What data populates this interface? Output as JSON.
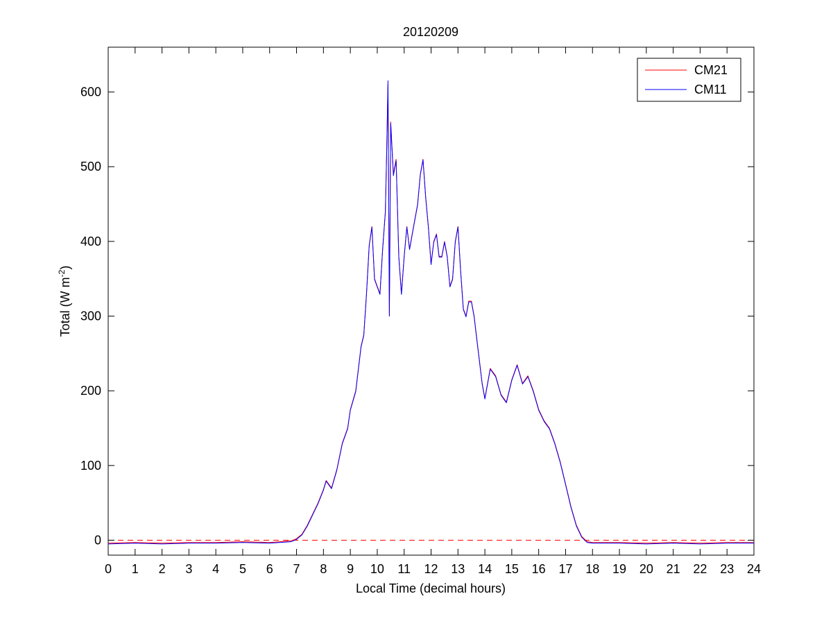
{
  "chart_data": {
    "type": "line",
    "title": "20120209",
    "xlabel": "Local Time (decimal hours)",
    "ylabel_main": "Total (W m",
    "ylabel_sup": "-2",
    "ylabel_end": ")",
    "xlim": [
      0,
      24
    ],
    "ylim": [
      -20,
      660
    ],
    "xticks": [
      0,
      1,
      2,
      3,
      4,
      5,
      6,
      7,
      8,
      9,
      10,
      11,
      12,
      13,
      14,
      15,
      16,
      17,
      18,
      19,
      20,
      21,
      22,
      23,
      24
    ],
    "yticks": [
      0,
      100,
      200,
      300,
      400,
      500,
      600
    ],
    "grid": false,
    "legend_position": "top-right",
    "reference_line": {
      "y": 0,
      "color": "#ff0000",
      "style": "dashed"
    },
    "series": [
      {
        "name": "CM21",
        "color": "#ff0000",
        "x": [
          0,
          1,
          2,
          3,
          4,
          5,
          6,
          6.8,
          7.0,
          7.2,
          7.4,
          7.6,
          7.8,
          8.0,
          8.1,
          8.3,
          8.5,
          8.7,
          8.9,
          9.0,
          9.2,
          9.4,
          9.5,
          9.6,
          9.7,
          9.8,
          9.9,
          10.0,
          10.1,
          10.2,
          10.3,
          10.35,
          10.4,
          10.45,
          10.5,
          10.6,
          10.7,
          10.8,
          10.9,
          11.0,
          11.1,
          11.2,
          11.3,
          11.5,
          11.6,
          11.7,
          11.8,
          11.9,
          12.0,
          12.1,
          12.2,
          12.3,
          12.4,
          12.5,
          12.6,
          12.7,
          12.8,
          12.9,
          13.0,
          13.1,
          13.2,
          13.3,
          13.4,
          13.5,
          13.6,
          13.7,
          13.8,
          13.9,
          14.0,
          14.2,
          14.4,
          14.6,
          14.8,
          15.0,
          15.2,
          15.4,
          15.6,
          15.8,
          16.0,
          16.2,
          16.4,
          16.6,
          16.8,
          17.0,
          17.2,
          17.4,
          17.6,
          17.8,
          18,
          19,
          20,
          21,
          22,
          23,
          24
        ],
        "values": [
          -4,
          -3,
          -4,
          -3,
          -3,
          -2,
          -3,
          -1,
          2,
          8,
          20,
          35,
          50,
          68,
          80,
          70,
          95,
          130,
          150,
          175,
          200,
          260,
          275,
          330,
          395,
          420,
          350,
          340,
          330,
          390,
          440,
          520,
          610,
          300,
          560,
          490,
          510,
          380,
          330,
          380,
          420,
          390,
          410,
          450,
          490,
          510,
          460,
          420,
          370,
          400,
          410,
          380,
          380,
          400,
          380,
          340,
          350,
          400,
          420,
          360,
          310,
          300,
          320,
          320,
          300,
          270,
          240,
          210,
          190,
          230,
          220,
          195,
          185,
          215,
          235,
          210,
          220,
          200,
          175,
          160,
          150,
          130,
          105,
          75,
          45,
          20,
          5,
          -2,
          -3,
          -3,
          -4,
          -3,
          -4,
          -3,
          -3
        ]
      },
      {
        "name": "CM11",
        "color": "#0000ff",
        "x": [
          0,
          1,
          2,
          3,
          4,
          5,
          6,
          6.8,
          7.0,
          7.2,
          7.4,
          7.6,
          7.8,
          8.0,
          8.1,
          8.3,
          8.5,
          8.7,
          8.9,
          9.0,
          9.2,
          9.4,
          9.5,
          9.6,
          9.7,
          9.8,
          9.9,
          10.0,
          10.1,
          10.2,
          10.3,
          10.35,
          10.4,
          10.45,
          10.5,
          10.6,
          10.7,
          10.8,
          10.9,
          11.0,
          11.1,
          11.2,
          11.3,
          11.5,
          11.6,
          11.7,
          11.8,
          11.9,
          12.0,
          12.1,
          12.2,
          12.3,
          12.4,
          12.5,
          12.6,
          12.7,
          12.8,
          12.9,
          13.0,
          13.1,
          13.2,
          13.3,
          13.4,
          13.5,
          13.6,
          13.7,
          13.8,
          13.9,
          14.0,
          14.2,
          14.4,
          14.6,
          14.8,
          15.0,
          15.2,
          15.4,
          15.6,
          15.8,
          16.0,
          16.2,
          16.4,
          16.6,
          16.8,
          17.0,
          17.2,
          17.4,
          17.6,
          17.8,
          18,
          19,
          20,
          21,
          22,
          23,
          24
        ],
        "values": [
          -5,
          -4,
          -5,
          -4,
          -4,
          -3,
          -4,
          -2,
          1,
          7,
          19,
          34,
          49,
          67,
          79,
          69,
          94,
          129,
          149,
          174,
          199,
          259,
          274,
          329,
          394,
          419,
          349,
          339,
          329,
          389,
          439,
          519,
          615,
          300,
          558,
          488,
          508,
          379,
          329,
          379,
          419,
          389,
          409,
          449,
          489,
          509,
          459,
          419,
          369,
          399,
          409,
          379,
          379,
          399,
          379,
          339,
          349,
          399,
          419,
          359,
          309,
          299,
          319,
          319,
          299,
          269,
          239,
          209,
          189,
          229,
          219,
          194,
          184,
          214,
          234,
          209,
          219,
          199,
          174,
          159,
          149,
          129,
          104,
          74,
          44,
          19,
          4,
          -3,
          -4,
          -4,
          -5,
          -4,
          -5,
          -4,
          -4
        ]
      }
    ]
  }
}
